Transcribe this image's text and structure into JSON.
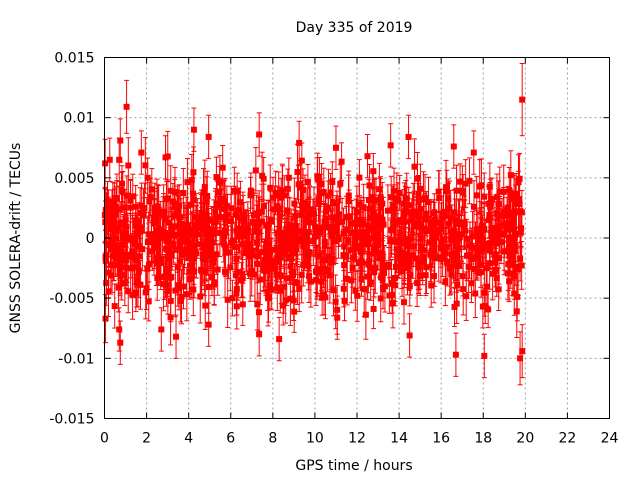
{
  "chart_data": {
    "type": "scatter",
    "title": "Day 335 of 2019",
    "xlabel": "GPS time / hours",
    "ylabel": "GNSS SOLERA-drift / TECUs",
    "xlim": [
      0,
      24
    ],
    "ylim": [
      -0.015,
      0.015
    ],
    "x_ticks": [
      0,
      2,
      4,
      6,
      8,
      10,
      12,
      14,
      16,
      18,
      20,
      22,
      24
    ],
    "y_ticks": [
      0.015,
      0.01,
      0.005,
      0,
      -0.005,
      -0.01,
      -0.015
    ],
    "x_tick_labels": [
      "0",
      "2",
      "4",
      "6",
      "8",
      "10",
      "12",
      "14",
      "16",
      "18",
      "20",
      "22",
      "24"
    ],
    "y_tick_labels": [
      "0.015",
      "0.01",
      "0.005",
      "0",
      "-0.005",
      "-0.01",
      "-0.015"
    ],
    "grid": true,
    "series_color": "#ff0000",
    "marker": "filled-square",
    "error_bars": true,
    "data_x_range": [
      0,
      19.85
    ],
    "typical_spread": 0.0025,
    "typical_error": 0.0018,
    "series": [
      {
        "name": "",
        "points": [
          {
            "x": 0.03,
            "y": 0.0062,
            "err": 0.002
          },
          {
            "x": 0.05,
            "y": -0.0067,
            "err": 0.002
          },
          {
            "x": 0.25,
            "y": 0.0065,
            "err": 0.0018
          },
          {
            "x": 0.7,
            "y": 0.0065,
            "err": 0.0018
          },
          {
            "x": 0.75,
            "y": 0.0081,
            "err": 0.0018
          },
          {
            "x": 0.7,
            "y": -0.0076,
            "err": 0.0018
          },
          {
            "x": 0.75,
            "y": -0.0087,
            "err": 0.0018
          },
          {
            "x": 1.05,
            "y": 0.0109,
            "err": 0.0022
          },
          {
            "x": 1.75,
            "y": 0.0071,
            "err": 0.0018
          },
          {
            "x": 2.9,
            "y": 0.0067,
            "err": 0.0018
          },
          {
            "x": 2.7,
            "y": -0.0076,
            "err": 0.0018
          },
          {
            "x": 3.4,
            "y": -0.0082,
            "err": 0.0018
          },
          {
            "x": 4.25,
            "y": 0.009,
            "err": 0.0018
          },
          {
            "x": 4.95,
            "y": 0.0084,
            "err": 0.0018
          },
          {
            "x": 4.95,
            "y": -0.0072,
            "err": 0.0018
          },
          {
            "x": 7.35,
            "y": 0.0086,
            "err": 0.0018
          },
          {
            "x": 7.35,
            "y": -0.008,
            "err": 0.0018
          },
          {
            "x": 8.3,
            "y": -0.0084,
            "err": 0.0018
          },
          {
            "x": 9.25,
            "y": 0.0079,
            "err": 0.0018
          },
          {
            "x": 11.0,
            "y": 0.0075,
            "err": 0.0018
          },
          {
            "x": 12.5,
            "y": 0.0068,
            "err": 0.0018
          },
          {
            "x": 13.6,
            "y": 0.0077,
            "err": 0.0018
          },
          {
            "x": 14.45,
            "y": 0.0084,
            "err": 0.0018
          },
          {
            "x": 14.5,
            "y": -0.0081,
            "err": 0.0018
          },
          {
            "x": 16.7,
            "y": -0.0097,
            "err": 0.0018
          },
          {
            "x": 18.05,
            "y": -0.0098,
            "err": 0.0018
          },
          {
            "x": 16.6,
            "y": 0.0076,
            "err": 0.0018
          },
          {
            "x": 17.55,
            "y": 0.0071,
            "err": 0.0018
          },
          {
            "x": 19.75,
            "y": -0.01,
            "err": 0.0022
          },
          {
            "x": 19.85,
            "y": -0.0094,
            "err": 0.0022
          },
          {
            "x": 19.85,
            "y": 0.0115,
            "err": 0.003
          }
        ]
      }
    ]
  }
}
